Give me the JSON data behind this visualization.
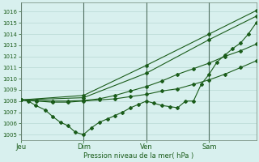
{
  "background_color": "#d8f0ee",
  "grid_color": "#b8d8d4",
  "line_color": "#1a5c1a",
  "ylabel": "Pression niveau de la mer( hPa )",
  "ylim": [
    1004.5,
    1016.8
  ],
  "yticks": [
    1005,
    1006,
    1007,
    1008,
    1009,
    1010,
    1011,
    1012,
    1013,
    1014,
    1015,
    1016
  ],
  "day_labels": [
    "Jeu",
    "Dim",
    "Ven",
    "Sam"
  ],
  "day_positions": [
    0,
    0.333,
    0.667,
    1.0
  ],
  "xlim": [
    0,
    1.25
  ],
  "s1_x": [
    0,
    0.083,
    0.167,
    0.25,
    0.333,
    0.417,
    0.5,
    0.583,
    0.667,
    0.75,
    0.833,
    0.917,
    1.0,
    1.083,
    1.167,
    1.25
  ],
  "s1_y": [
    1008.1,
    1008.0,
    1007.9,
    1007.9,
    1008.0,
    1008.1,
    1008.2,
    1008.4,
    1008.6,
    1008.9,
    1009.1,
    1009.5,
    1009.9,
    1010.4,
    1011.0,
    1011.6
  ],
  "s2_x": [
    0,
    0.083,
    0.167,
    0.25,
    0.333,
    0.417,
    0.5,
    0.583,
    0.667,
    0.75,
    0.833,
    0.917,
    1.0,
    1.083,
    1.167,
    1.25
  ],
  "s2_y": [
    1008.1,
    1008.05,
    1008.0,
    1008.0,
    1008.05,
    1008.2,
    1008.5,
    1008.9,
    1009.3,
    1009.8,
    1010.4,
    1010.9,
    1011.4,
    1012.0,
    1012.5,
    1013.1
  ],
  "s3_x": [
    0,
    0.333,
    0.667,
    1.0,
    1.25
  ],
  "s3_y": [
    1008.1,
    1008.3,
    1010.5,
    1013.5,
    1015.6
  ],
  "s4_x": [
    0,
    0.333,
    0.667,
    1.0,
    1.25
  ],
  "s4_y": [
    1008.1,
    1008.5,
    1011.2,
    1014.0,
    1016.1
  ],
  "jagged_x": [
    0,
    0.04,
    0.08,
    0.13,
    0.17,
    0.21,
    0.25,
    0.29,
    0.333,
    0.375,
    0.417,
    0.46,
    0.5,
    0.54,
    0.583,
    0.625,
    0.667,
    0.708,
    0.75,
    0.792,
    0.833,
    0.875,
    0.917,
    0.958,
    1.0,
    1.042,
    1.083,
    1.125,
    1.167,
    1.208,
    1.25
  ],
  "jagged_y": [
    1008.1,
    1008.0,
    1007.6,
    1007.2,
    1006.6,
    1006.1,
    1005.8,
    1005.2,
    1005.0,
    1005.6,
    1006.1,
    1006.4,
    1006.7,
    1007.0,
    1007.4,
    1007.7,
    1008.0,
    1007.8,
    1007.6,
    1007.5,
    1007.4,
    1008.0,
    1008.0,
    1009.5,
    1010.4,
    1011.5,
    1012.1,
    1012.7,
    1013.2,
    1014.0,
    1015.0
  ],
  "vline_color": "#507060",
  "spine_color": "#708878"
}
